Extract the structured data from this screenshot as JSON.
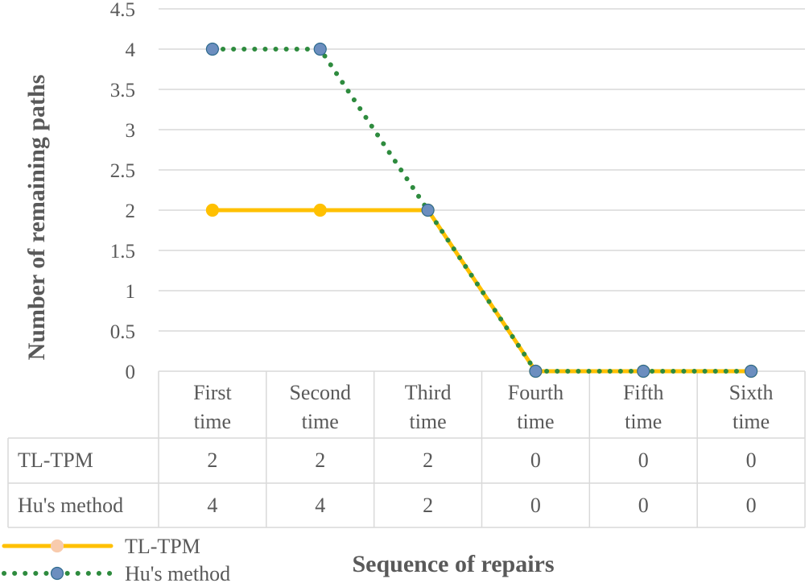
{
  "chart_data": {
    "type": "line",
    "categories": [
      [
        "First",
        "time"
      ],
      [
        "Second",
        "time"
      ],
      [
        "Third",
        "time"
      ],
      [
        "Fourth",
        "time"
      ],
      [
        "Fifth",
        "time"
      ],
      [
        "Sixth",
        "time"
      ]
    ],
    "series": [
      {
        "name": "TL-TPM",
        "values": [
          2,
          2,
          2,
          0,
          0,
          0
        ],
        "color": "#FFC000",
        "marker_fill": "#FFC000",
        "style": "solid"
      },
      {
        "name": "Hu's method",
        "values": [
          4,
          4,
          2,
          0,
          0,
          0
        ],
        "color": "#2E8B3E",
        "marker_fill": "#6C8EBF",
        "style": "dotted"
      }
    ],
    "yticks": [
      "0",
      "0.5",
      "1",
      "1.5",
      "2",
      "2.5",
      "3",
      "3.5",
      "4",
      "4.5"
    ],
    "ylim": [
      0,
      4.5
    ],
    "ylabel": "Number of remaining paths",
    "xlabel": "Sequence of repairs",
    "data_table": {
      "rows": [
        {
          "label": "TL-TPM",
          "values": [
            "2",
            "2",
            "2",
            "0",
            "0",
            "0"
          ]
        },
        {
          "label": "Hu's method",
          "values": [
            "4",
            "4",
            "2",
            "0",
            "0",
            "0"
          ]
        }
      ]
    },
    "legend": {
      "position": "bottom-left",
      "entries": [
        "TL-TPM",
        "Hu's method"
      ]
    },
    "grid": true
  }
}
